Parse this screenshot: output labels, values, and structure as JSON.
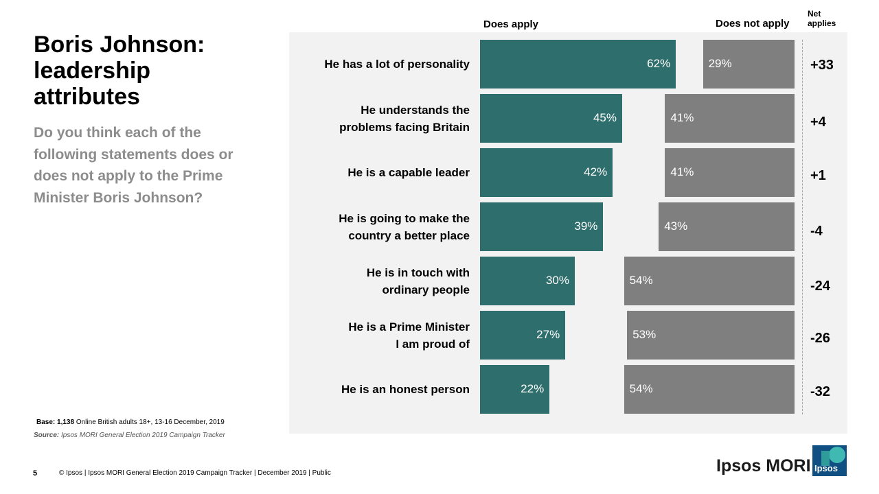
{
  "title_lines": [
    "Boris Johnson:",
    "leadership",
    "attributes"
  ],
  "question": "Do you think each of the following statements does or does not apply to the Prime Minister Boris Johnson?",
  "chart_data": {
    "type": "bar",
    "orientation": "horizontal",
    "column_headers": {
      "apply": "Does apply",
      "not_apply": "Does not apply",
      "net": [
        "Net",
        "applies"
      ]
    },
    "categories": [
      [
        "He has a lot of personality"
      ],
      [
        "He understands the",
        "problems facing Britain"
      ],
      [
        "He is a capable leader"
      ],
      [
        "He is going to make the",
        "country a better place"
      ],
      [
        "He is in touch with",
        "ordinary people"
      ],
      [
        "He is a Prime Minister",
        "I am proud of"
      ],
      [
        "He is an honest person"
      ]
    ],
    "series": [
      {
        "name": "Does apply",
        "color": "#2e6e6c",
        "values": [
          62,
          45,
          42,
          39,
          30,
          27,
          22
        ],
        "labels": [
          "62%",
          "45%",
          "42%",
          "39%",
          "30%",
          "27%",
          "22%"
        ]
      },
      {
        "name": "Does not apply",
        "color": "#7f7f7f",
        "values": [
          29,
          41,
          41,
          43,
          54,
          53,
          54
        ],
        "labels": [
          "29%",
          "41%",
          "41%",
          "43%",
          "54%",
          "53%",
          "54%"
        ]
      }
    ],
    "net_applies": [
      "+33",
      "+4",
      "+1",
      "-4",
      "-24",
      "-26",
      "-32"
    ],
    "value_unit": "%"
  },
  "base": {
    "label": "Base:",
    "count": "1,138",
    "text": "Online British adults 18+, 13-16 December, 2019"
  },
  "source": {
    "label": "Source:",
    "text": "Ipsos MORI General Election 2019 Campaign Tracker"
  },
  "page_number": "5",
  "footer": "© Ipsos | Ipsos MORI  General Election 2019 Campaign  Tracker | December 2019 | Public",
  "brand": "Ipsos MORI",
  "logo_text": "Ipsos"
}
